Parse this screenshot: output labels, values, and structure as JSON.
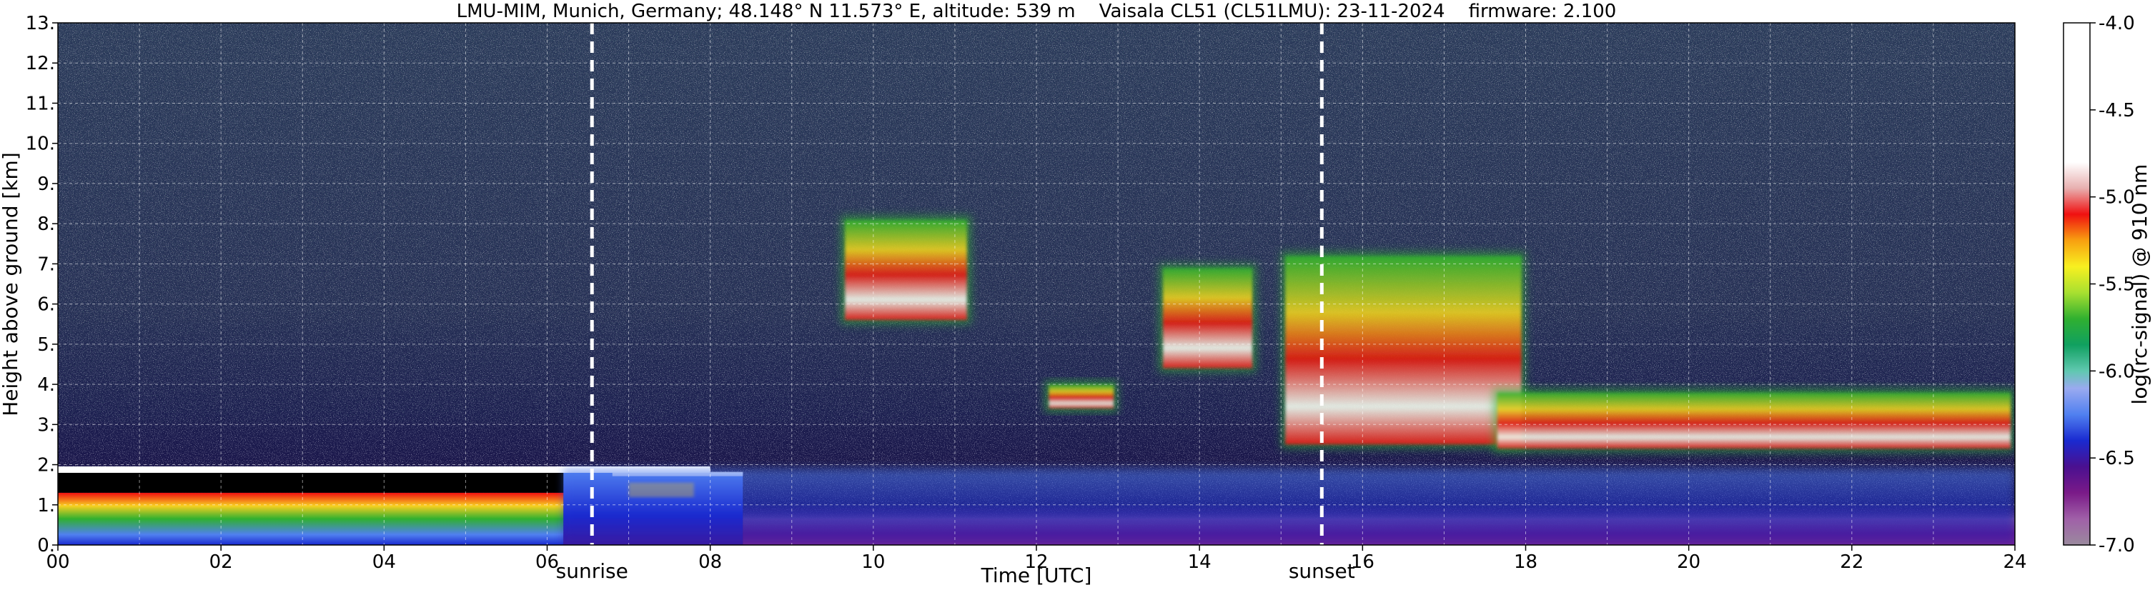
{
  "chart_data": {
    "type": "heatmap",
    "title": "LMU-MIM, Munich, Germany; 48.148° N 11.573° E, altitude: 539 m    Vaisala CL51 (CL51LMU): 23-11-2024    firmware: 2.100",
    "xlabel": "Time [UTC]",
    "ylabel": "Height above ground [km]",
    "xlim": [
      0,
      24
    ],
    "ylim": [
      0,
      13
    ],
    "x_ticks": [
      "00",
      "02",
      "04",
      "06",
      "08",
      "10",
      "12",
      "14",
      "16",
      "18",
      "20",
      "22",
      "24"
    ],
    "y_ticks": [
      "0.",
      "1.",
      "2.",
      "3.",
      "4.",
      "5.",
      "6.",
      "7.",
      "8.",
      "9.",
      "10.",
      "11.",
      "12.",
      "13."
    ],
    "grid": true,
    "markers": [
      {
        "label": "sunrise",
        "time_utc": 6.55
      },
      {
        "label": "sunset",
        "time_utc": 15.5
      }
    ],
    "colorbar": {
      "label": "log(rc-signal) @ 910 nm",
      "range": [
        -7.0,
        -4.0
      ],
      "ticks": [
        "-4.0",
        "-4.5",
        "-5.0",
        "-5.5",
        "-6.0",
        "-6.5",
        "-7.0"
      ],
      "stops": [
        {
          "value": -7.0,
          "color": "#9a8a9e"
        },
        {
          "value": -6.85,
          "color": "#a060a8"
        },
        {
          "value": -6.7,
          "color": "#7a1a88"
        },
        {
          "value": -6.55,
          "color": "#4a1090"
        },
        {
          "value": -6.4,
          "color": "#1a2ad0"
        },
        {
          "value": -6.25,
          "color": "#5080f0"
        },
        {
          "value": -6.1,
          "color": "#9aaaf0"
        },
        {
          "value": -6.0,
          "color": "#60c8b0"
        },
        {
          "value": -5.85,
          "color": "#10a060"
        },
        {
          "value": -5.7,
          "color": "#30b030"
        },
        {
          "value": -5.55,
          "color": "#a8e030"
        },
        {
          "value": -5.4,
          "color": "#f8f020"
        },
        {
          "value": -5.25,
          "color": "#f8a010"
        },
        {
          "value": -5.1,
          "color": "#f01010"
        },
        {
          "value": -4.95,
          "color": "#e8b0b0"
        },
        {
          "value": -4.8,
          "color": "#ffffff"
        },
        {
          "value": -4.0,
          "color": "#ffffff"
        }
      ]
    },
    "features": [
      {
        "kind": "boundary layer aerosol",
        "t_start": 0,
        "t_end": 8.4,
        "h_bottom": 0,
        "h_top": 1.9,
        "level": -5.3
      },
      {
        "kind": "low cloud top",
        "t_start": 0,
        "t_end": 8.4,
        "height": 1.85,
        "level": -4.5
      },
      {
        "kind": "surface layer",
        "t_start": 8.4,
        "t_end": 24,
        "h_bottom": 0,
        "h_top": 1.0,
        "level": -6.8
      },
      {
        "kind": "mid cloud",
        "t_start": 9.6,
        "t_end": 11.2,
        "h_bottom": 5.5,
        "h_top": 8.2,
        "level": -5.0
      },
      {
        "kind": "mid cloud",
        "t_start": 12.1,
        "t_end": 13.0,
        "h_bottom": 3.3,
        "h_top": 4.1,
        "level": -4.6
      },
      {
        "kind": "mid cloud",
        "t_start": 13.5,
        "t_end": 14.7,
        "h_bottom": 4.3,
        "h_top": 7.0,
        "level": -5.2
      },
      {
        "kind": "mid cloud",
        "t_start": 15.0,
        "t_end": 18.0,
        "h_bottom": 2.4,
        "h_top": 7.3,
        "level": -4.8
      },
      {
        "kind": "cloud layer",
        "t_start": 17.6,
        "t_end": 24,
        "h_bottom": 2.3,
        "h_top": 3.9,
        "level": -4.5
      }
    ]
  }
}
